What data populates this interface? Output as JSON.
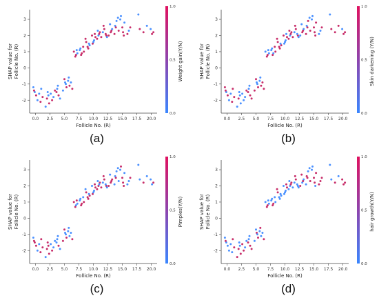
{
  "figure": {
    "colors": {
      "low": "#3a86ff",
      "high": "#c2185b",
      "mid": "#8e44ad"
    }
  },
  "chart_data": [
    {
      "type": "scatter",
      "panel_label": "(a)",
      "xlabel": "Follicle No. (R)",
      "ylabel_line1": "SHAP value for",
      "ylabel_line2": "Follicle No. (R)",
      "colorbar_label": "Weight gain(Y/N)",
      "colorbar_ticks": [
        "1.0",
        "0.5",
        "0.0"
      ],
      "xlim": [
        -1,
        21
      ],
      "ylim": [
        -2.8,
        3.6
      ],
      "xticks": [
        "0.0",
        "2.5",
        "5.0",
        "7.5",
        "10.0",
        "12.5",
        "15.0",
        "17.5",
        "20.0"
      ],
      "yticks": [
        "-2",
        "-1",
        "0",
        "1",
        "2",
        "3"
      ]
    },
    {
      "type": "scatter",
      "panel_label": "(b)",
      "xlabel": "Follicle No. (R)",
      "ylabel_line1": "SHAP value for",
      "ylabel_line2": "Follicle No. (R)",
      "colorbar_label": "Skin darkening (Y/N)",
      "colorbar_ticks": [
        "1.0",
        "0.5",
        "0.0"
      ],
      "xlim": [
        -1,
        21
      ],
      "ylim": [
        -2.8,
        3.6
      ],
      "xticks": [
        "0.0",
        "2.5",
        "5.0",
        "7.5",
        "10.0",
        "12.5",
        "15.0",
        "17.5",
        "20.0"
      ],
      "yticks": [
        "-2",
        "-1",
        "0",
        "1",
        "2",
        "3"
      ]
    },
    {
      "type": "scatter",
      "panel_label": "(c)",
      "xlabel": "Follicle No. (R)",
      "ylabel_line1": "SHAP value for",
      "ylabel_line2": "Follicle No. (R)",
      "colorbar_label": "Pimples(Y/N)",
      "colorbar_ticks": [
        "1.0",
        "0.5",
        "0.0"
      ],
      "xlim": [
        -1,
        21
      ],
      "ylim": [
        -2.8,
        3.6
      ],
      "xticks": [
        "0.0",
        "2.5",
        "5.0",
        "7.5",
        "10.0",
        "12.5",
        "15.0",
        "17.5",
        "20.0"
      ],
      "yticks": [
        "-2",
        "-1",
        "0",
        "1",
        "2",
        "3"
      ]
    },
    {
      "type": "scatter",
      "panel_label": "(d)",
      "xlabel": "Follicle No. (R)",
      "ylabel_line1": "SHAP value for",
      "ylabel_line2": "Follicle No. (R)",
      "colorbar_label": "hair growth(Y/N)",
      "colorbar_ticks": [
        "1.0",
        "0.5",
        "0.0"
      ],
      "xlim": [
        -1,
        21
      ],
      "ylim": [
        -2.8,
        3.6
      ],
      "xticks": [
        "0.0",
        "2.5",
        "5.0",
        "7.5",
        "10.0",
        "12.5",
        "15.0",
        "17.5",
        "20.0"
      ],
      "yticks": [
        "-2",
        "-1",
        "0",
        "1",
        "2",
        "3"
      ]
    }
  ],
  "shared_points": {
    "description_free": true,
    "points": [
      [
        0,
        -1.2,
        0
      ],
      [
        0,
        -1.5,
        0
      ],
      [
        0,
        -1.7,
        1
      ],
      [
        0,
        -2.0,
        0
      ],
      [
        0,
        -1.4,
        1
      ],
      [
        1,
        -1.3,
        0
      ],
      [
        1,
        -1.8,
        1
      ],
      [
        1,
        -1.6,
        0
      ],
      [
        1,
        -2.1,
        1
      ],
      [
        2,
        -1.5,
        0
      ],
      [
        2,
        -2.2,
        1
      ],
      [
        2,
        -2.4,
        0
      ],
      [
        2,
        -1.9,
        1
      ],
      [
        2,
        -1.7,
        0
      ],
      [
        3,
        -1.6,
        0
      ],
      [
        3,
        -2.0,
        1
      ],
      [
        3,
        -1.8,
        0
      ],
      [
        3,
        -1.4,
        1
      ],
      [
        4,
        -1.3,
        0
      ],
      [
        4,
        -1.7,
        1
      ],
      [
        4,
        -1.9,
        0
      ],
      [
        4,
        -1.5,
        1
      ],
      [
        4,
        -1.1,
        0
      ],
      [
        5,
        -0.9,
        0
      ],
      [
        5,
        -1.2,
        1
      ],
      [
        5,
        -1.4,
        0
      ],
      [
        5,
        -0.7,
        1
      ],
      [
        5,
        -1.0,
        0
      ],
      [
        6,
        -0.8,
        0
      ],
      [
        6,
        -1.1,
        1
      ],
      [
        6,
        -0.9,
        0
      ],
      [
        6,
        -1.3,
        1
      ],
      [
        6,
        -0.6,
        0
      ],
      [
        7,
        0.8,
        1
      ],
      [
        7,
        0.9,
        0
      ],
      [
        7,
        1.0,
        1
      ],
      [
        7,
        0.7,
        1
      ],
      [
        7,
        1.1,
        0
      ],
      [
        8,
        1.0,
        1
      ],
      [
        8,
        1.2,
        0
      ],
      [
        8,
        0.9,
        1
      ],
      [
        8,
        1.3,
        1
      ],
      [
        8,
        1.1,
        0
      ],
      [
        8,
        0.8,
        1
      ],
      [
        9,
        1.2,
        1
      ],
      [
        9,
        1.4,
        0
      ],
      [
        9,
        1.6,
        1
      ],
      [
        9,
        1.3,
        1
      ],
      [
        9,
        1.5,
        0
      ],
      [
        9,
        1.8,
        1
      ],
      [
        10,
        1.5,
        1
      ],
      [
        10,
        1.7,
        0
      ],
      [
        10,
        1.9,
        1
      ],
      [
        10,
        2.0,
        1
      ],
      [
        10,
        1.6,
        0
      ],
      [
        10,
        2.1,
        1
      ],
      [
        11,
        1.8,
        1
      ],
      [
        11,
        2.0,
        0
      ],
      [
        11,
        2.2,
        1
      ],
      [
        11,
        1.9,
        1
      ],
      [
        11,
        2.3,
        0
      ],
      [
        11,
        2.1,
        1
      ],
      [
        12,
        2.0,
        1
      ],
      [
        12,
        2.2,
        0
      ],
      [
        12,
        2.4,
        1
      ],
      [
        12,
        2.1,
        1
      ],
      [
        12,
        1.9,
        0
      ],
      [
        12,
        2.6,
        1
      ],
      [
        13,
        2.2,
        1
      ],
      [
        13,
        2.4,
        0
      ],
      [
        13,
        2.0,
        1
      ],
      [
        13,
        2.7,
        0
      ],
      [
        13,
        2.3,
        1
      ],
      [
        14,
        2.3,
        1
      ],
      [
        14,
        2.6,
        0
      ],
      [
        14,
        2.9,
        0
      ],
      [
        14,
        3.1,
        0
      ],
      [
        14,
        2.1,
        1
      ],
      [
        14,
        2.5,
        1
      ],
      [
        15,
        2.2,
        1
      ],
      [
        15,
        2.8,
        0
      ],
      [
        15,
        3.2,
        0
      ],
      [
        15,
        2.5,
        1
      ],
      [
        15,
        2.0,
        1
      ],
      [
        15,
        3.0,
        0
      ],
      [
        16,
        2.1,
        1
      ],
      [
        16,
        2.3,
        0
      ],
      [
        16,
        2.5,
        1
      ],
      [
        18,
        3.3,
        0
      ],
      [
        18,
        2.4,
        1
      ],
      [
        19,
        2.6,
        0
      ],
      [
        19,
        2.2,
        1
      ],
      [
        20,
        2.4,
        0
      ],
      [
        20,
        2.1,
        1
      ],
      [
        20,
        2.2,
        1
      ]
    ]
  }
}
